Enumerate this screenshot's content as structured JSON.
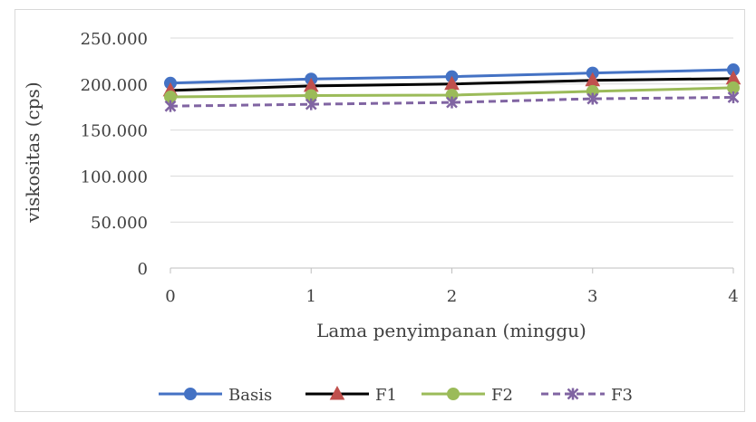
{
  "chart_data": {
    "type": "line",
    "title": "",
    "xlabel": "Lama penyimpanan (minggu)",
    "ylabel": "viskositas (cps)",
    "x": [
      0,
      1,
      2,
      3,
      4
    ],
    "x_tick_labels": [
      "0",
      "1",
      "2",
      "3",
      "4"
    ],
    "ylim": [
      0,
      250000
    ],
    "y_ticks": [
      0,
      50000,
      100000,
      150000,
      200000,
      250000
    ],
    "y_tick_labels": [
      "0",
      "50.000",
      "100.000",
      "150.000",
      "200.000",
      "250.000"
    ],
    "grid": true,
    "legend_position": "bottom",
    "series": [
      {
        "name": "Basis",
        "values": [
          201000,
          205500,
          208000,
          212000,
          215500
        ],
        "color": "#4472c4",
        "marker": "circle",
        "dash": "solid"
      },
      {
        "name": "F1",
        "values": [
          193000,
          198000,
          200000,
          204000,
          206000
        ],
        "color": "#000000",
        "marker": "triangle",
        "dash": "solid",
        "marker_color": "#c0504d"
      },
      {
        "name": "F2",
        "values": [
          186000,
          187500,
          188000,
          192000,
          196000
        ],
        "color": "#9bbb59",
        "marker": "circle",
        "dash": "solid"
      },
      {
        "name": "F3",
        "values": [
          176000,
          178000,
          180000,
          184000,
          185500
        ],
        "color": "#8064a2",
        "marker": "x-star",
        "dash": "dashed"
      }
    ]
  }
}
